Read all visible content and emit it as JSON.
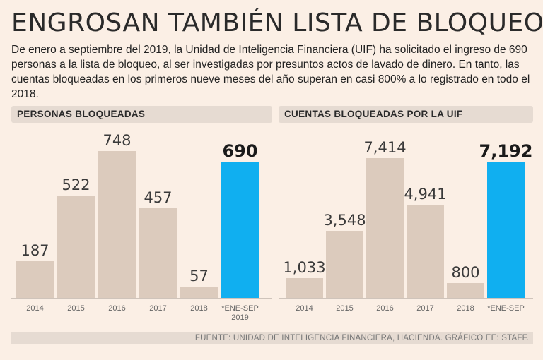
{
  "header": {
    "title": "ENGROSAN TAMBIÉN LISTA DE BLOQUEOS",
    "subtitle": "De enero a septiembre del 2019, la Unidad de Inteligencia Financiera (UIF) ha solicitado el ingreso de 690 personas a la lista de bloqueo, al ser investigadas por presuntos actos de lavado de dinero. En tanto, las cuentas bloqueadas en los primeros nueve meses del año superan en casi 800% a lo registrado en todo el 2018."
  },
  "footer": {
    "source": "FUENTE: UNIDAD DE INTELIGENCIA FINANCIERA, HACIENDA. GRÁFICO EE: STAFF."
  },
  "colors": {
    "background": "#fbefe5",
    "bar": "#dccbbd",
    "highlight": "#10aff0",
    "header_band": "#e6dbd2"
  },
  "chart_data": [
    {
      "type": "bar",
      "title": "PERSONAS BLOQUEADAS",
      "categories": [
        "2014",
        "2015",
        "2016",
        "2017",
        "2018",
        "*ENE-SEP 2019"
      ],
      "values": [
        187,
        522,
        748,
        457,
        57,
        690
      ],
      "value_labels": [
        "187",
        "522",
        "748",
        "457",
        "57",
        "690"
      ],
      "highlight_index": 5,
      "ylim": [
        0,
        748
      ],
      "grid": false,
      "xlabel": "",
      "ylabel": ""
    },
    {
      "type": "bar",
      "title": "CUENTAS BLOQUEADAS POR LA UIF",
      "categories": [
        "2014",
        "2015",
        "2016",
        "2017",
        "2018",
        "*ENE-SEP"
      ],
      "values": [
        1033,
        3548,
        7414,
        4941,
        800,
        7192
      ],
      "value_labels": [
        "1,033",
        "3,548",
        "7,414",
        "4,941",
        "800",
        "7,192"
      ],
      "highlight_index": 5,
      "ylim": [
        0,
        7414
      ],
      "grid": false,
      "xlabel": "",
      "ylabel": ""
    }
  ]
}
